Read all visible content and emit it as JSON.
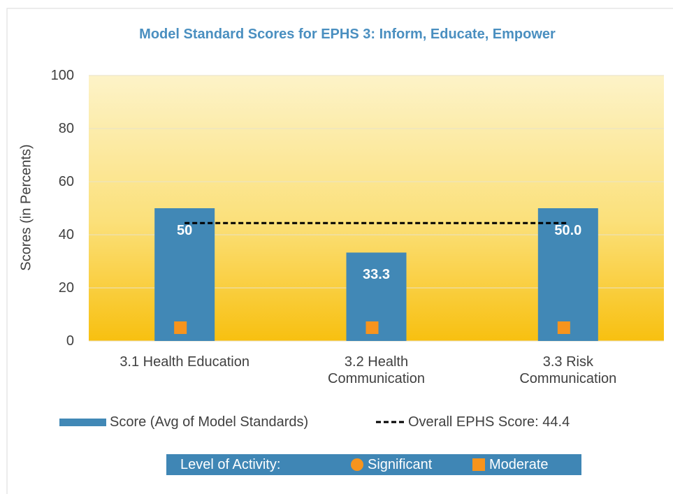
{
  "chart_data": {
    "type": "bar",
    "title": "Model Standard Scores for EPHS 3: Inform, Educate, Empower",
    "y_label": "Scores (in Percents)",
    "categories": [
      "3.1 Health Education",
      "3.2 Health Communication",
      "3.3 Risk Communication"
    ],
    "series": [
      {
        "name": "Score (Avg of Model Standards)",
        "color": "#4188b6",
        "values": [
          50,
          33.3,
          50
        ],
        "value_labels": [
          "50",
          "33.3",
          "50.0"
        ]
      }
    ],
    "reference_line": {
      "name": "Overall EPHS Score: 44.4",
      "value": 44.4,
      "color": "#000000"
    },
    "level_legend_title": "Level of Activity:",
    "levels": [
      {
        "name": "Significant",
        "shape": "circle",
        "color": "#f7941d",
        "values": [
          null,
          null,
          null
        ]
      },
      {
        "name": "Moderate",
        "shape": "square",
        "color": "#f7941d",
        "values": [
          5,
          5,
          5
        ]
      }
    ],
    "ylim": [
      0,
      100
    ],
    "yticks": [
      0,
      20,
      40,
      60,
      80,
      100
    ],
    "grid": true
  }
}
